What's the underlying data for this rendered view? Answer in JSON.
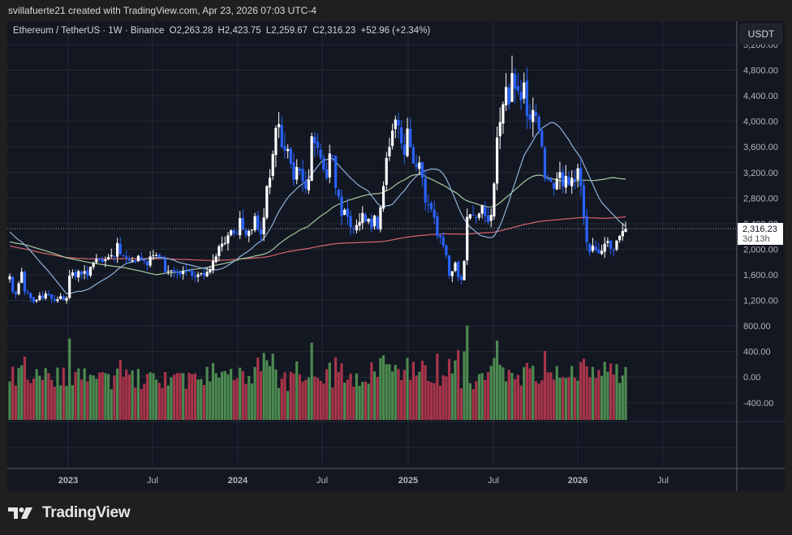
{
  "credit": "svillafuerte21 created with TradingView.com, Apr 23, 2026 07:03 UTC-4",
  "legend": {
    "symbol": "Ethereum / TetherUS · 1W · Binance",
    "open": "O2,263.28",
    "high": "H2,423.75",
    "low": "L2,259.67",
    "close": "C2,316.23",
    "change": "+52.96 (+2.34%)"
  },
  "currency_button": "USDT",
  "last_price": {
    "value": "2,316.23",
    "countdown": "3d 13h"
  },
  "price_axis_labels": [
    "5,200.00",
    "4,800.00",
    "4,400.00",
    "4,000.00",
    "3,600.00",
    "3,200.00",
    "2,800.00",
    "2,400.00",
    "2,000.00",
    "1,600.00",
    "1,200.00"
  ],
  "volume_axis_labels": [
    "800.00",
    "400.00",
    "0.00",
    "-400.00"
  ],
  "time_axis_labels": [
    "2023",
    "Jul",
    "2024",
    "Jul",
    "2025",
    "Jul",
    "2026",
    "Jul"
  ],
  "brand": "TradingView",
  "colors": {
    "background": "#131722",
    "up_candle": "#ffffff",
    "down_candle": "#2962ff",
    "vol_up": "#4c8a50",
    "vol_down": "#a8354a",
    "ma_fast": "#8fb3d9",
    "ma_mid": "#a6c9a0",
    "ma_slow": "#d9666e"
  },
  "chart_data": {
    "type": "candlestick",
    "title": "Ethereum / TetherUS · 1W · Binance",
    "xlabel": "",
    "ylabel": "USDT",
    "ylim": [
      1000,
      5200
    ],
    "x_ticks": [
      "2023",
      "Jul",
      "2024",
      "Jul",
      "2025",
      "Jul",
      "2026",
      "Jul"
    ],
    "grid": true,
    "close_series": [
      1570,
      1330,
      1290,
      1460,
      1640,
      1330,
      1320,
      1230,
      1170,
      1200,
      1270,
      1230,
      1300,
      1290,
      1220,
      1190,
      1210,
      1260,
      1200,
      1230,
      1580,
      1630,
      1560,
      1650,
      1600,
      1650,
      1580,
      1720,
      1780,
      1840,
      1830,
      1790,
      1830,
      1870,
      1900,
      1870,
      2090,
      1920,
      1880,
      1860,
      1810,
      1820,
      1800,
      1890,
      1830,
      1810,
      1740,
      1880,
      1900,
      1900,
      1870,
      1840,
      1640,
      1650,
      1660,
      1640,
      1620,
      1600,
      1650,
      1640,
      1640,
      1580,
      1560,
      1600,
      1620,
      1580,
      1640,
      1680,
      1810,
      1880,
      2040,
      2080,
      2090,
      2210,
      2290,
      2240,
      2230,
      2480,
      2300,
      2220,
      2280,
      2300,
      2510,
      2300,
      2230,
      2490,
      2980,
      3110,
      3480,
      3890,
      3950,
      3590,
      3540,
      3560,
      3330,
      3080,
      3280,
      3220,
      3060,
      2940,
      3080,
      3760,
      3650,
      3580,
      3420,
      3240,
      3110,
      3490,
      3460,
      2950,
      2820,
      2510,
      2610,
      2500,
      2340,
      2310,
      2370,
      2420,
      2560,
      2430,
      2470,
      2330,
      2520,
      2310,
      2650,
      2980,
      3420,
      3590,
      3850,
      4020,
      3930,
      3650,
      3470,
      3880,
      3590,
      3330,
      3280,
      3350,
      3110,
      2720,
      2690,
      2620,
      2490,
      2200,
      2180,
      2050,
      1900,
      1580,
      1650,
      1780,
      1560,
      1520,
      1810,
      2500,
      2540,
      2520,
      2480,
      2550,
      2680,
      2510,
      2420,
      2530,
      3020,
      3740,
      3980,
      4260,
      4530,
      4260,
      4750,
      4500,
      4470,
      4320,
      4600,
      4080,
      4020,
      4170,
      4080,
      3870,
      3600,
      3100,
      3080,
      3050,
      2940,
      3100,
      3200,
      2980,
      3140,
      3000,
      3110,
      3060,
      3260,
      2980,
      2500,
      2100,
      1950,
      2050,
      1980,
      1930,
      1970,
      2080,
      2120,
      2000,
      1980,
      2130,
      2200,
      2280,
      2316
    ],
    "volume_axis": [
      -400,
      800
    ]
  }
}
